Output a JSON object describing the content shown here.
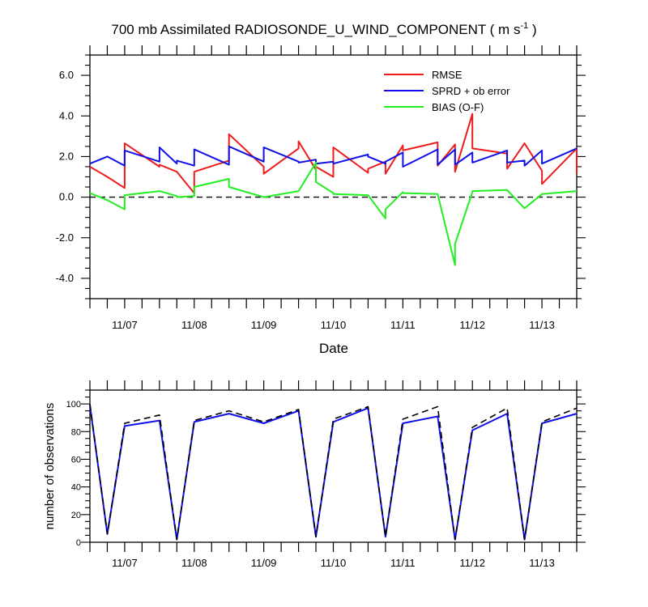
{
  "chart_data": [
    {
      "type": "line",
      "title": "700 mb Assimilated RADIOSONDE_U_WIND_COMPONENT ( m s",
      "title_superscript": "-1",
      "title_end": " )",
      "xlabel": "Date",
      "ylabel": "",
      "x_unit": "day index (day 0 = 11/06 00Z)",
      "xlim": [
        0.5,
        7.5
      ],
      "ylim": [
        -5,
        7
      ],
      "y_ticks": [
        -4.0,
        -2.0,
        0.0,
        2.0,
        4.0,
        6.0
      ],
      "y_tick_labels": [
        "-4.0",
        "-2.0",
        "0.0",
        "2.0",
        "4.0",
        "6.0"
      ],
      "x_ticks": [
        1,
        2,
        3,
        4,
        5,
        6,
        7
      ],
      "x_tick_labels": [
        "11/07",
        "11/08",
        "11/09",
        "11/10",
        "11/11",
        "11/12",
        "11/13"
      ],
      "zero_line": true,
      "legend": "top-right",
      "series": [
        {
          "name": "RMSE",
          "color": "#ee1c1c",
          "x": [
            0.5,
            0.75,
            1.0,
            1.0,
            1.5,
            1.5,
            1.75,
            2.0,
            2.0,
            2.5,
            2.5,
            3.0,
            3.0,
            3.5,
            3.5,
            3.75,
            3.75,
            4.0,
            4.0,
            4.5,
            4.5,
            4.75,
            4.75,
            5.0,
            5.0,
            5.5,
            5.5,
            5.75,
            5.75,
            6.0,
            6.0,
            6.5,
            6.5,
            6.75,
            7.0,
            7.0,
            7.5,
            7.5
          ],
          "y": [
            1.5,
            1.0,
            0.45,
            2.65,
            1.5,
            1.6,
            1.25,
            0.2,
            1.25,
            1.8,
            3.1,
            1.5,
            1.15,
            2.4,
            2.75,
            1.35,
            1.5,
            1.0,
            2.45,
            1.2,
            1.4,
            1.75,
            1.15,
            2.55,
            2.3,
            2.7,
            1.55,
            2.6,
            1.25,
            4.1,
            2.4,
            2.15,
            1.4,
            2.65,
            1.3,
            0.65,
            2.4,
            1.15
          ]
        },
        {
          "name": "SPRD + ob error",
          "color": "#1010e8",
          "x": [
            0.5,
            0.75,
            1.0,
            1.0,
            1.5,
            1.5,
            1.75,
            1.75,
            2.0,
            2.0,
            2.5,
            2.5,
            3.0,
            3.0,
            3.5,
            3.5,
            3.75,
            3.75,
            4.0,
            4.0,
            4.5,
            4.5,
            4.75,
            4.75,
            5.0,
            5.0,
            5.5,
            5.5,
            5.75,
            5.75,
            6.0,
            6.0,
            6.5,
            6.5,
            6.75,
            6.75,
            7.0,
            7.0,
            7.5
          ],
          "y": [
            1.65,
            2.0,
            1.55,
            2.3,
            1.75,
            2.45,
            1.65,
            1.8,
            1.55,
            2.35,
            1.6,
            2.5,
            1.75,
            2.45,
            1.75,
            1.7,
            1.85,
            1.65,
            1.75,
            1.65,
            2.1,
            2.0,
            1.65,
            1.75,
            2.2,
            1.5,
            2.35,
            1.6,
            2.35,
            1.6,
            2.2,
            1.7,
            2.3,
            1.7,
            1.8,
            1.55,
            2.3,
            1.65,
            2.4
          ]
        },
        {
          "name": "BIAS (O-F)",
          "color": "#22ee22",
          "x": [
            0.5,
            0.75,
            1.0,
            1.0,
            1.5,
            1.75,
            1.75,
            2.0,
            2.0,
            2.5,
            2.5,
            3.0,
            3.5,
            3.75,
            3.75,
            4.0,
            4.0,
            4.5,
            4.75,
            4.75,
            5.0,
            5.0,
            5.5,
            5.75,
            5.75,
            6.0,
            6.0,
            6.5,
            6.75,
            7.0,
            7.0,
            7.5
          ],
          "y": [
            0.2,
            -0.15,
            -0.6,
            0.1,
            0.3,
            0.05,
            0.0,
            0.05,
            0.5,
            0.9,
            0.5,
            0.0,
            0.3,
            1.7,
            0.75,
            0.2,
            0.15,
            0.1,
            -1.05,
            -0.6,
            0.25,
            0.2,
            0.15,
            -3.35,
            -2.3,
            0.25,
            0.3,
            0.35,
            -0.55,
            0.15,
            0.15,
            0.3
          ]
        }
      ]
    },
    {
      "type": "line",
      "title": "",
      "xlabel": "",
      "ylabel": "number of observations",
      "xlim": [
        0.5,
        7.5
      ],
      "ylim": [
        0,
        110
      ],
      "y_ticks": [
        0,
        20,
        40,
        60,
        80,
        100
      ],
      "y_tick_labels": [
        "0",
        "20",
        "40",
        "60",
        "80",
        "100"
      ],
      "x_ticks": [
        1,
        2,
        3,
        4,
        5,
        6,
        7
      ],
      "x_tick_labels": [
        "11/07",
        "11/08",
        "11/09",
        "11/10",
        "11/11",
        "11/12",
        "11/13"
      ],
      "series": [
        {
          "color": "#1010e8",
          "style": "solid",
          "x": [
            0.5,
            0.75,
            1.0,
            1.5,
            1.75,
            2.0,
            2.5,
            3.0,
            3.5,
            3.75,
            4.0,
            4.5,
            4.75,
            5.0,
            5.5,
            5.75,
            6.0,
            6.5,
            6.75,
            7.0,
            7.5
          ],
          "y": [
            99,
            6,
            84,
            88,
            2,
            87,
            93,
            86,
            95,
            4,
            87,
            97,
            4,
            86,
            91,
            2,
            81,
            93,
            2,
            86,
            93
          ]
        },
        {
          "color": "#000000",
          "style": "dashed",
          "x": [
            0.5,
            0.75,
            1.0,
            1.5,
            1.75,
            2.0,
            2.5,
            3.0,
            3.5,
            3.75,
            4.0,
            4.5,
            4.75,
            5.0,
            5.5,
            5.75,
            6.0,
            6.5,
            6.75,
            7.0,
            7.5
          ],
          "y": [
            100,
            6,
            86,
            92,
            2,
            88,
            95,
            87,
            96,
            4,
            89,
            98,
            4,
            89,
            98,
            2,
            83,
            97,
            2,
            87,
            97
          ]
        }
      ]
    }
  ]
}
